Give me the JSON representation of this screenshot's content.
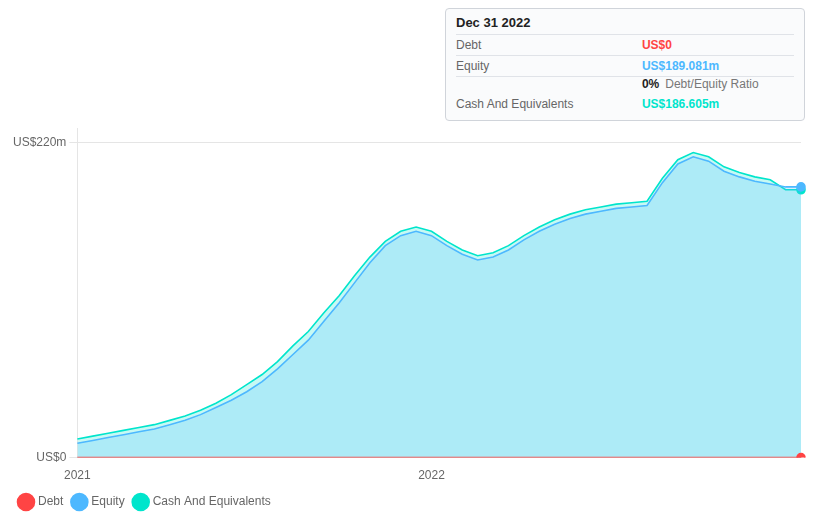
{
  "chart_data": {
    "type": "area",
    "categories": [
      "2021",
      null,
      null,
      null,
      null,
      null,
      null,
      null,
      null,
      null,
      null,
      null,
      null,
      null,
      null,
      null,
      null,
      null,
      null,
      null,
      null,
      null,
      null,
      "2022",
      null,
      null,
      null,
      null,
      null,
      null,
      null,
      null,
      null,
      null,
      null,
      null,
      null,
      null,
      null,
      null,
      null,
      null,
      null,
      null,
      null,
      null,
      null,
      null
    ],
    "series": [
      {
        "name": "Debt",
        "color": "#ff4444",
        "values": [
          0,
          0,
          0,
          0,
          0,
          0,
          0,
          0,
          0,
          0,
          0,
          0,
          0,
          0,
          0,
          0,
          0,
          0,
          0,
          0,
          0,
          0,
          0,
          0,
          0,
          0,
          0,
          0,
          0,
          0,
          0,
          0,
          0,
          0,
          0,
          0,
          0,
          0,
          0,
          0,
          0,
          0,
          0,
          0,
          0,
          0,
          0,
          0
        ]
      },
      {
        "name": "Equity",
        "color": "#4db8ff",
        "values": [
          10,
          12,
          14,
          16,
          18,
          20,
          23,
          26,
          30,
          35,
          40,
          46,
          53,
          62,
          72,
          82,
          95,
          108,
          122,
          136,
          148,
          155,
          158,
          155,
          148,
          142,
          138,
          140,
          145,
          152,
          158,
          163,
          167,
          170,
          172,
          174,
          175,
          176,
          192,
          205,
          210,
          207,
          200,
          196,
          193,
          191,
          189,
          189
        ]
      },
      {
        "name": "Cash And Equivalents",
        "color": "#00e5cc",
        "values": [
          13,
          15,
          17,
          19,
          21,
          23,
          26,
          29,
          33,
          38,
          44,
          51,
          58,
          67,
          78,
          88,
          101,
          113,
          127,
          140,
          151,
          158,
          161,
          158,
          151,
          145,
          141,
          143,
          148,
          155,
          161,
          166,
          170,
          173,
          175,
          177,
          178,
          179,
          195,
          208,
          213,
          210,
          203,
          199,
          196,
          194,
          187,
          187
        ]
      }
    ],
    "ylim": [
      0,
      230
    ],
    "yticks": [
      {
        "value": 0,
        "label": "US$0"
      },
      {
        "value": 220,
        "label": "US$220m"
      }
    ],
    "grid": true,
    "legend": "lower left",
    "annotations": [
      "Dec 31 2022",
      "Debt",
      "US$0",
      "Equity",
      "US$189.081m",
      "0%",
      "Debt/Equity Ratio",
      "Cash And Equivalents",
      "US$186.605m"
    ]
  }
}
